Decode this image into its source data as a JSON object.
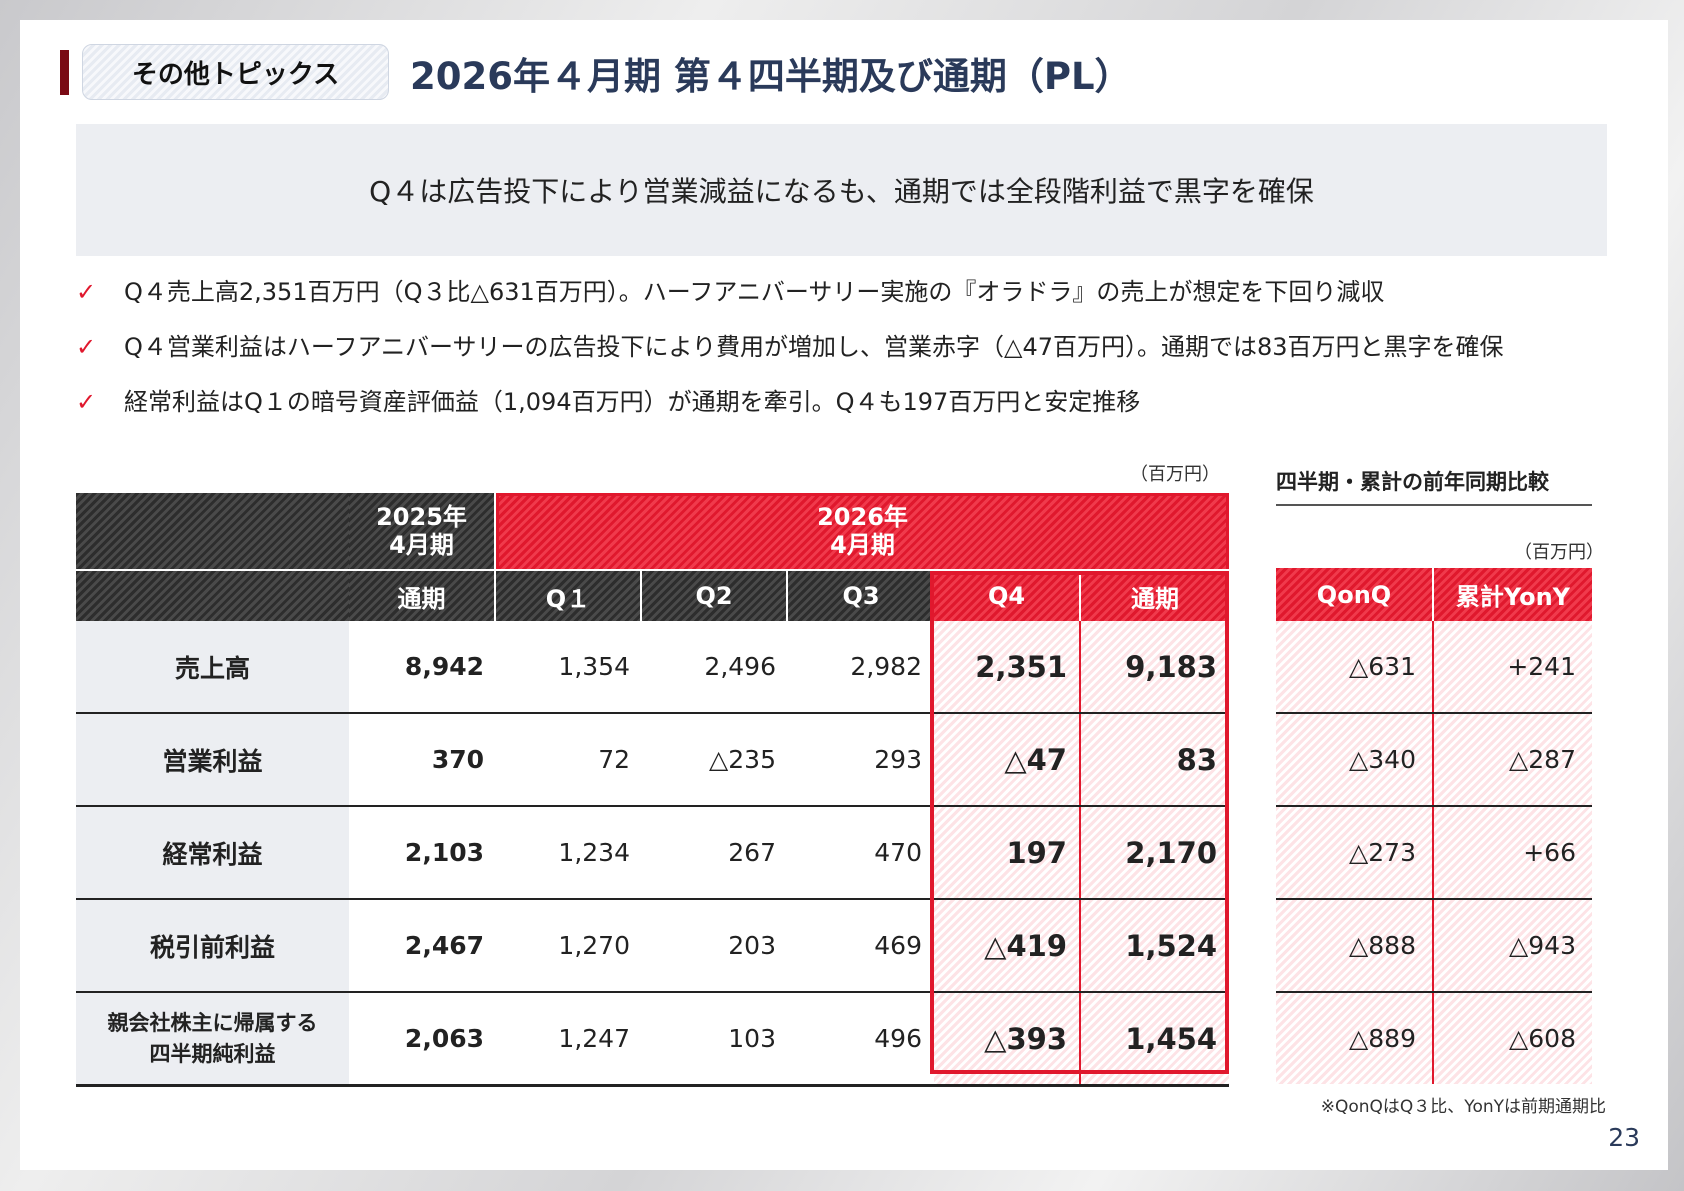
{
  "header": {
    "topic_tag": "その他トピックス",
    "title": "2026年４月期 第４四半期及び通期（PL）"
  },
  "summary": "Q４は広告投下により営業減益になるも、通期では全段階利益で黒字を確保",
  "bullets": [
    "Q４売上高2,351百万円（Q３比△631百万円）。ハーフアニバーサリー実施の『オラドラ』の売上が想定を下回り減収",
    "Q４営業利益はハーフアニバーサリーの広告投下により費用が増加し、営業赤字（△47百万円）。通期では83百万円と黒字を確保",
    "経常利益はQ１の暗号資産評価益（1,094百万円）が通期を牽引。Q４も197百万円と安定推移"
  ],
  "check_icon": "✓",
  "main_table": {
    "unit": "（百万円）",
    "group_headers": {
      "fy2025_line1": "2025年",
      "fy2025_line2": "4月期",
      "fy2026_line1": "2026年",
      "fy2026_line2": "4月期"
    },
    "columns": [
      "通期",
      "Q１",
      "Q2",
      "Q3",
      "Q4",
      "通期"
    ],
    "rows": [
      {
        "label": "売上高",
        "values": [
          "8,942",
          "1,354",
          "2,496",
          "2,982",
          "2,351",
          "9,183"
        ]
      },
      {
        "label": "営業利益",
        "values": [
          "370",
          "72",
          "△235",
          "293",
          "△47",
          "83"
        ]
      },
      {
        "label": "経常利益",
        "values": [
          "2,103",
          "1,234",
          "267",
          "470",
          "197",
          "2,170"
        ]
      },
      {
        "label": "税引前利益",
        "values": [
          "2,467",
          "1,270",
          "203",
          "469",
          "△419",
          "1,524"
        ]
      },
      {
        "label_line1": "親会社株主に帰属する",
        "label_line2": "四半期純利益",
        "values": [
          "2,063",
          "1,247",
          "103",
          "496",
          "△393",
          "1,454"
        ]
      }
    ]
  },
  "comparison": {
    "title": "四半期・累計の前年同期比較",
    "unit": "（百万円）",
    "columns": [
      "QonQ",
      "累計YonY"
    ],
    "rows": [
      [
        "△631",
        "+241"
      ],
      [
        "△340",
        "△287"
      ],
      [
        "△273",
        "+66"
      ],
      [
        "△888",
        "△943"
      ],
      [
        "△889",
        "△608"
      ]
    ],
    "footnote": "※QonQはQ３比、YonYは前期通期比"
  },
  "page_number": "23",
  "colors": {
    "accent_red": "#e0182d",
    "title_navy": "#2a3a5a",
    "header_dark": "#2d2d2d",
    "tag_bar": "#7a0a14"
  }
}
